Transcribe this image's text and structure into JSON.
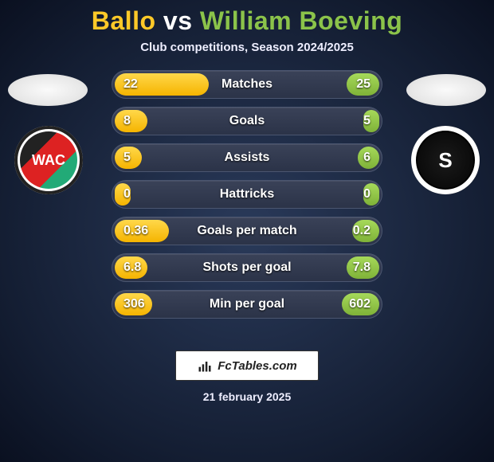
{
  "players": {
    "p1": {
      "name": "Ballo",
      "color": "#ffc928",
      "crest_text": "WAC"
    },
    "p2": {
      "name": "William Boeving",
      "color": "#8bc34a",
      "crest_text": "S"
    }
  },
  "vs_text": "vs",
  "subtitle": "Club competitions, Season 2024/2025",
  "row_style": {
    "track_bg_top": "#3a4258",
    "track_bg_bottom": "#2b3348",
    "track_border": "#4b5670",
    "left_fill_top": "#ffd84a",
    "left_fill_bot": "#f5b400",
    "right_fill_top": "#a6d95a",
    "right_fill_bot": "#7fb238",
    "label_fontsize": 16,
    "value_fontsize": 16
  },
  "stats": [
    {
      "label": "Matches",
      "p1": "22",
      "p2": "25",
      "p1_pct": 35,
      "p2_pct": 12
    },
    {
      "label": "Goals",
      "p1": "8",
      "p2": "5",
      "p1_pct": 12,
      "p2_pct": 6
    },
    {
      "label": "Assists",
      "p1": "5",
      "p2": "6",
      "p1_pct": 10,
      "p2_pct": 8
    },
    {
      "label": "Hattricks",
      "p1": "0",
      "p2": "0",
      "p1_pct": 6,
      "p2_pct": 6
    },
    {
      "label": "Goals per match",
      "p1": "0.36",
      "p2": "0.2",
      "p1_pct": 20,
      "p2_pct": 10
    },
    {
      "label": "Shots per goal",
      "p1": "6.8",
      "p2": "7.8",
      "p1_pct": 12,
      "p2_pct": 12
    },
    {
      "label": "Min per goal",
      "p1": "306",
      "p2": "602",
      "p1_pct": 14,
      "p2_pct": 14
    }
  ],
  "footer": {
    "brand": "FcTables.com",
    "date": "21 february 2025"
  }
}
